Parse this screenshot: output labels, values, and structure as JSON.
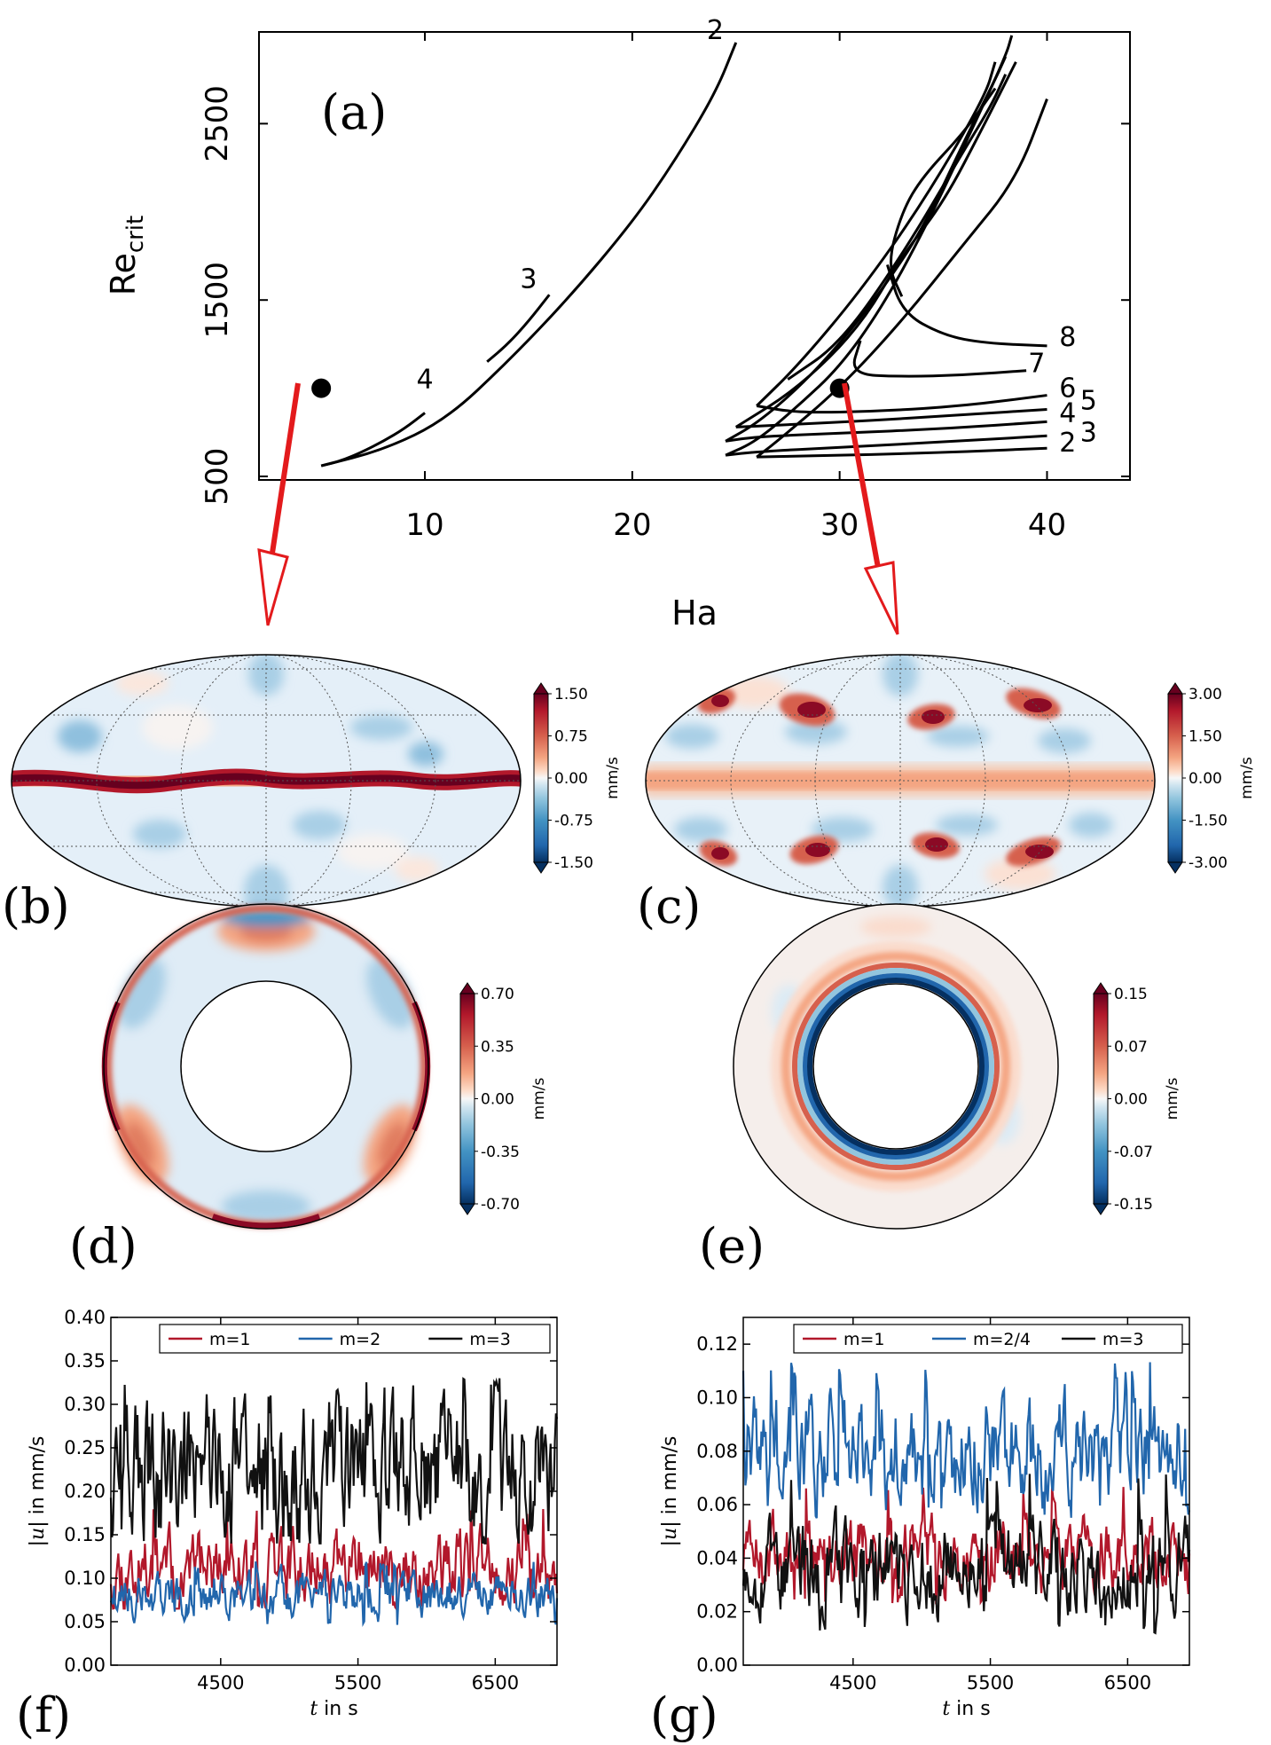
{
  "figure": {
    "panel_labels": [
      "(a)",
      "(b)",
      "(c)",
      "(d)",
      "(e)",
      "(f)",
      "(g)"
    ]
  },
  "chart_data": [
    {
      "id": "a",
      "type": "line",
      "xlabel": "Ha",
      "ylabel": "Re",
      "ylabel_sub": "crit",
      "xlim": [
        2,
        44
      ],
      "ylim": [
        480,
        3020
      ],
      "xticks": [
        10,
        20,
        30,
        40
      ],
      "yticks": [
        500,
        1500,
        2500
      ],
      "series": [
        {
          "name": "4",
          "label_at": [
            10,
            1000
          ],
          "points": [
            [
              5,
              560
            ],
            [
              6,
              590
            ],
            [
              7,
              640
            ],
            [
              8,
              700
            ],
            [
              9,
              770
            ],
            [
              10,
              860
            ]
          ]
        },
        {
          "name": "3",
          "label_at": [
            15,
            1570
          ],
          "points": [
            [
              13,
              1150
            ],
            [
              14,
              1250
            ],
            [
              15,
              1380
            ],
            [
              16,
              1530
            ]
          ]
        },
        {
          "name": "2",
          "label_at": [
            24,
            2980
          ],
          "points": [
            [
              5,
              560
            ],
            [
              8,
              650
            ],
            [
              11,
              820
            ],
            [
              14,
              1150
            ],
            [
              17,
              1520
            ],
            [
              20,
              1940
            ],
            [
              22,
              2280
            ],
            [
              24,
              2670
            ],
            [
              25,
              2960
            ]
          ]
        },
        {
          "name": "8",
          "label_at": [
            41,
            1240
          ],
          "points": [
            [
              33,
              1520
            ],
            [
              32.3,
              1700
            ],
            [
              33,
              2000
            ],
            [
              34,
              2200
            ],
            [
              36,
              2450
            ],
            [
              37.5,
              2700
            ]
          ]
        },
        {
          "name": "8",
          "points": [
            [
              32.3,
              1700
            ],
            [
              33,
              1430
            ],
            [
              35,
              1300
            ],
            [
              37,
              1255
            ],
            [
              40,
              1240
            ]
          ]
        },
        {
          "name": "7",
          "label_at": [
            39.5,
            1090
          ],
          "points": [
            [
              27.5,
              1050
            ],
            [
              30,
              1250
            ],
            [
              33,
              1750
            ],
            [
              36,
              2350
            ],
            [
              37.3,
              2600
            ],
            [
              38,
              2780
            ]
          ]
        },
        {
          "name": "7",
          "points": [
            [
              31,
              1270
            ],
            [
              30.5,
              1080
            ],
            [
              33,
              1065
            ],
            [
              36,
              1075
            ],
            [
              39,
              1100
            ]
          ]
        },
        {
          "name": "6",
          "label_at": [
            41,
            950
          ],
          "points": [
            [
              26,
              900
            ],
            [
              28,
              1130
            ],
            [
              31,
              1550
            ],
            [
              34,
              2050
            ],
            [
              37,
              2650
            ],
            [
              37.5,
              2850
            ]
          ]
        },
        {
          "name": "6",
          "points": [
            [
              26,
              900
            ],
            [
              28,
              860
            ],
            [
              32,
              870
            ],
            [
              36,
              900
            ],
            [
              40,
              960
            ]
          ]
        },
        {
          "name": "5",
          "label_at": [
            42,
            880
          ],
          "points": [
            [
              25,
              780
            ],
            [
              28,
              1000
            ],
            [
              31,
              1350
            ],
            [
              33,
              1750
            ],
            [
              35,
              2050
            ],
            [
              37,
              2500
            ],
            [
              38.5,
              2850
            ]
          ]
        },
        {
          "name": "5",
          "points": [
            [
              25,
              780
            ],
            [
              27,
              790
            ],
            [
              32,
              820
            ],
            [
              36,
              850
            ],
            [
              40,
              880
            ]
          ]
        },
        {
          "name": "4",
          "label_at": [
            41,
            810
          ],
          "points": [
            [
              24.5,
              700
            ],
            [
              26,
              800
            ],
            [
              28,
              1000
            ],
            [
              30,
              1250
            ],
            [
              32,
              1550
            ],
            [
              34,
              1900
            ],
            [
              36,
              2400
            ],
            [
              37.5,
              2750
            ],
            [
              38,
              2880
            ]
          ]
        },
        {
          "name": "4",
          "points": [
            [
              24.5,
              700
            ],
            [
              26,
              725
            ],
            [
              30,
              745
            ],
            [
              35,
              770
            ],
            [
              40,
              810
            ]
          ]
        },
        {
          "name": "3",
          "label_at": [
            42,
            700
          ],
          "points": [
            [
              24.5,
              620
            ],
            [
              26,
              700
            ],
            [
              28,
              900
            ],
            [
              30,
              1120
            ],
            [
              32,
              1450
            ],
            [
              34,
              1880
            ],
            [
              36,
              2370
            ],
            [
              38,
              2880
            ],
            [
              38.3,
              3000
            ]
          ]
        },
        {
          "name": "3",
          "points": [
            [
              24.5,
              620
            ],
            [
              26,
              640
            ],
            [
              30,
              665
            ],
            [
              35,
              695
            ],
            [
              40,
              730
            ]
          ]
        },
        {
          "name": "2",
          "label_at": [
            41,
            640
          ],
          "points": [
            [
              26,
              610
            ],
            [
              27,
              700
            ],
            [
              30,
              1000
            ],
            [
              33,
              1380
            ],
            [
              36,
              1820
            ],
            [
              38.5,
              2180
            ],
            [
              40,
              2640
            ]
          ]
        },
        {
          "name": "2",
          "points": [
            [
              26,
              610
            ],
            [
              28,
              615
            ],
            [
              32,
              625
            ],
            [
              36,
              640
            ],
            [
              40,
              660
            ]
          ]
        }
      ],
      "markers": [
        [
          5,
          1000
        ],
        [
          30,
          1000
        ]
      ]
    },
    {
      "id": "b",
      "type": "heatmap",
      "projection": "mollweide",
      "colorbar": {
        "min": "-1.50",
        "max": "1.50",
        "ticks": [
          "1.50",
          "0.75",
          "0.00",
          "-0.75",
          "-1.50"
        ],
        "unit": "mm/s"
      }
    },
    {
      "id": "c",
      "type": "heatmap",
      "projection": "mollweide",
      "colorbar": {
        "min": "-3.00",
        "max": "3.00",
        "ticks": [
          "3.00",
          "1.50",
          "0.00",
          "-1.50",
          "-3.00"
        ],
        "unit": "mm/s"
      }
    },
    {
      "id": "d",
      "type": "heatmap",
      "projection": "annulus",
      "colorbar": {
        "min": "-0.70",
        "max": "0.70",
        "ticks": [
          "0.70",
          "0.35",
          "0.00",
          "-0.35",
          "-0.70"
        ],
        "unit": "mm/s"
      }
    },
    {
      "id": "e",
      "type": "heatmap",
      "projection": "annulus",
      "colorbar": {
        "min": "-0.15",
        "max": "0.15",
        "ticks": [
          "0.15",
          "0.07",
          "0.00",
          "-0.07",
          "-0.15"
        ],
        "unit": "mm/s"
      }
    },
    {
      "id": "f",
      "type": "line",
      "xlabel_italic": "t",
      "xlabel": " in s",
      "ylabel_pre": "|",
      "ylabel_italic": "u",
      "ylabel": "| in mm/s",
      "xlim": [
        3700,
        6950
      ],
      "ylim": [
        0.0,
        0.4
      ],
      "xticks": [
        4500,
        5500,
        6500
      ],
      "yticks": [
        "0.00",
        "0.05",
        "0.10",
        "0.15",
        "0.20",
        "0.25",
        "0.30",
        "0.35",
        "0.40"
      ],
      "series": [
        {
          "name": "m=1",
          "color": "#b2182b",
          "mean": 0.11,
          "amp": 0.025,
          "min": 0.065,
          "max": 0.18,
          "seed": 11
        },
        {
          "name": "m=2",
          "color": "#2166ac",
          "mean": 0.082,
          "amp": 0.015,
          "min": 0.045,
          "max": 0.12,
          "seed": 23
        },
        {
          "name": "m=3",
          "color": "#111111",
          "mean": 0.225,
          "amp": 0.05,
          "min": 0.14,
          "max": 0.33,
          "seed": 37
        }
      ]
    },
    {
      "id": "g",
      "type": "line",
      "xlabel_italic": "t",
      "xlabel": " in s",
      "ylabel_pre": "|",
      "ylabel_italic": "u",
      "ylabel": "| in mm/s",
      "xlim": [
        3700,
        6950
      ],
      "ylim": [
        0.0,
        0.13
      ],
      "xticks": [
        4500,
        5500,
        6500
      ],
      "yticks": [
        "0.00",
        "0.02",
        "0.04",
        "0.06",
        "0.08",
        "0.10",
        "0.12"
      ],
      "series": [
        {
          "name": "m=1",
          "color": "#b2182b",
          "mean": 0.041,
          "amp": 0.008,
          "min": 0.022,
          "max": 0.068,
          "seed": 5
        },
        {
          "name": "m=2/4",
          "color": "#2166ac",
          "mean": 0.08,
          "amp": 0.012,
          "min": 0.055,
          "max": 0.115,
          "seed": 19
        },
        {
          "name": "m=3",
          "color": "#111111",
          "mean": 0.036,
          "amp": 0.01,
          "min": 0.012,
          "max": 0.072,
          "seed": 53
        }
      ]
    }
  ]
}
